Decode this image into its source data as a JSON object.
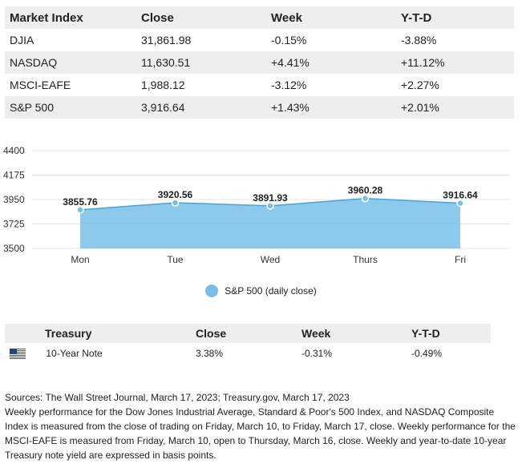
{
  "market_table": {
    "headers": [
      "Market Index",
      "Close",
      "Week",
      "Y-T-D"
    ],
    "rows": [
      [
        "DJIA",
        "31,861.98",
        "-0.15%",
        "-3.88%"
      ],
      [
        "NASDAQ",
        "11,630.51",
        "+4.41%",
        "+11.12%"
      ],
      [
        "MSCI-EAFE",
        "1,988.12",
        "-3.12%",
        "+2.27%"
      ],
      [
        "S&P 500",
        "3,916.64",
        "+1.43%",
        "+2.01%"
      ]
    ]
  },
  "chart_data": {
    "type": "area",
    "categories": [
      "Mon",
      "Tue",
      "Wed",
      "Thurs",
      "Fri"
    ],
    "series": [
      {
        "name": "S&P 500 (daily close)",
        "values": [
          3855.76,
          3920.56,
          3891.93,
          3960.28,
          3916.64
        ]
      }
    ],
    "data_labels": [
      "3855.76",
      "3920.56",
      "3891.93",
      "3960.28",
      "3916.64"
    ],
    "yticks": [
      "4400",
      "4175",
      "3950",
      "3725",
      "3500"
    ],
    "ylim": [
      3500,
      4400
    ],
    "color": "#79bfe8",
    "grid": true,
    "legend_position": "bottom"
  },
  "treasury_table": {
    "headers": [
      "Treasury",
      "Close",
      "Week",
      "Y-T-D"
    ],
    "row": {
      "flag_icon": "us-flag-icon",
      "name": "10-Year Note",
      "close": "3.38%",
      "week": "-0.31%",
      "ytd": "-0.49%"
    }
  },
  "notes": {
    "sources": "Sources: The Wall Street Journal, March 17, 2023; Treasury.gov, March 17, 2023",
    "body": "Weekly performance for the Dow Jones Industrial Average, Standard & Poor's 500 Index, and NASDAQ Composite Index is measured from the close of trading on Friday, March 10, to Friday, March 17, close. Weekly performance for the MSCI-EAFE is measured from Friday, March 10, open to Thursday, March 16, close. Weekly and year-to-date 10-year Treasury note yield are expressed in basis points."
  }
}
